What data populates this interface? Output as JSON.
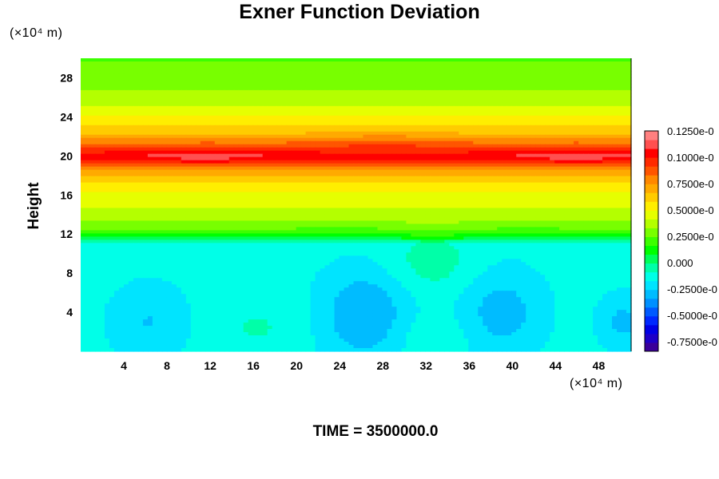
{
  "chart_data": {
    "type": "heatmap",
    "title": "Exner Function Deviation",
    "xlabel": "",
    "ylabel": "Height",
    "x_units": "(×10⁴ m)",
    "y_units": "(×10⁴ m)",
    "xlim": [
      0,
      51
    ],
    "ylim": [
      0,
      30
    ],
    "x_ticks": [
      "4",
      "8",
      "12",
      "16",
      "20",
      "24",
      "28",
      "32",
      "36",
      "40",
      "44",
      "48"
    ],
    "y_ticks": [
      "4",
      "8",
      "12",
      "16",
      "20",
      "24",
      "28"
    ],
    "colorbar_labels": [
      "0.1250e-0",
      "0.1000e-0",
      "0.7500e-0",
      "0.5000e-0",
      "0.2500e-0",
      "0.000",
      "-0.2500e-0",
      "-0.5000e-0",
      "-0.7500e-0"
    ],
    "colorbar_range": [
      -0.85,
      1.3
    ],
    "colors": {
      "bands": [
        "#3a009a",
        "#1e00c8",
        "#0000e6",
        "#0028ff",
        "#005aff",
        "#0090ff",
        "#00bcff",
        "#00e4ff",
        "#00ffe8",
        "#00ffa8",
        "#00ff58",
        "#00ff00",
        "#3cff00",
        "#78ff00",
        "#b4ff00",
        "#e6ff00",
        "#ffee00",
        "#ffcc00",
        "#ffaa00",
        "#ff8800",
        "#ff5500",
        "#ff2a00",
        "#ff0000",
        "#ff5050",
        "#ff8080"
      ]
    },
    "profile": {
      "heights": [
        0,
        11,
        11.6,
        12.2,
        13,
        14,
        16,
        17.5,
        18.5,
        19.3,
        19.7,
        20,
        20.3,
        20.8,
        21.5,
        22.2,
        23,
        24.5,
        26,
        28,
        30
      ],
      "values": [
        -0.13,
        -0.13,
        0.08,
        0.22,
        0.33,
        0.4,
        0.5,
        0.62,
        0.78,
        0.95,
        1.04,
        1.08,
        1.04,
        0.95,
        0.82,
        0.7,
        0.62,
        0.5,
        0.38,
        0.3,
        0.26
      ]
    },
    "features": [
      {
        "x": 6.3,
        "y": 3.0,
        "sx": 2.6,
        "sy": 2.8,
        "amp": -0.12
      },
      {
        "x": 26.3,
        "y": 3.8,
        "sx": 3.0,
        "sy": 3.4,
        "amp": -0.2
      },
      {
        "x": 39.0,
        "y": 4.0,
        "sx": 2.8,
        "sy": 3.2,
        "amp": -0.16
      },
      {
        "x": 50.2,
        "y": 3.0,
        "sx": 1.6,
        "sy": 2.0,
        "amp": -0.14
      },
      {
        "x": 32.5,
        "y": 9.0,
        "sx": 3.0,
        "sy": 2.2,
        "amp": 0.1
      },
      {
        "x": 16.5,
        "y": 2.5,
        "sx": 3.0,
        "sy": 2.2,
        "amp": 0.06
      },
      {
        "x": 32.5,
        "y": 1.5,
        "sx": 2.4,
        "sy": 1.6,
        "amp": 0.06
      },
      {
        "x": 11.5,
        "y": 20.0,
        "sx": 5.0,
        "sy": 0.8,
        "amp": 0.1
      },
      {
        "x": 46.0,
        "y": 20.0,
        "sx": 5.0,
        "sy": 0.8,
        "amp": 0.1
      },
      {
        "x": 28.0,
        "y": 21.5,
        "sx": 5.0,
        "sy": 0.6,
        "amp": 0.08
      }
    ]
  },
  "footer": {
    "time_label": "TIME = 3500000.0"
  }
}
